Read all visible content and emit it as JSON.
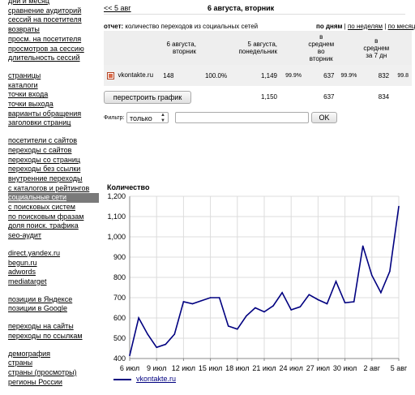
{
  "sidebar": {
    "groups": [
      [
        "дни и месяц",
        "сравнение аудиторий",
        "сессий на посетителя",
        "возвраты",
        "просм. на посетителя",
        "просмотров за сессию",
        "длительность сессий"
      ],
      [
        "страницы",
        "каталоги",
        "точки входа",
        "точки выхода",
        "варианты обращения",
        "заголовки страниц"
      ],
      [
        "посетители с сайтов",
        "переходы с сайтов",
        "переходы со страниц",
        "переходы без ссылки",
        "внутренние переходы",
        "с каталогов и рейтингов",
        "социальные сети",
        "с поисковых систем",
        "по поисковым фразам",
        "доля поиск. трафика",
        "seo-аудит"
      ],
      [
        "direct.yandex.ru",
        "begun.ru",
        "adwords",
        "mediatarget"
      ],
      [
        "позиции в Яндексе",
        "позиции в Google"
      ],
      [
        "переходы на сайты",
        "переходы по ссылкам"
      ],
      [
        "демография",
        "страны",
        "страны (просмотры)",
        "регионы России"
      ]
    ],
    "active": "социальные сети"
  },
  "header": {
    "back_link": "<< 5 авг",
    "title": "6 августа, вторник"
  },
  "report": {
    "label": "отчет:",
    "description": "количество переходов из социальных сетей",
    "periods_active": "по дням",
    "periods": [
      "по неделям",
      "по месяц"
    ]
  },
  "table": {
    "headers": [
      "6 августа, вторник",
      "5 августа, понедельник",
      "в среднем\nво вторник",
      "в среднем\nза 7 дн"
    ],
    "rows": [
      {
        "checked": true,
        "name": "vkontakte.ru",
        "v1": "148",
        "p1": "100.0%",
        "v2": "1,149",
        "p2": "99.9%",
        "v3": "637",
        "p3": "99.9%",
        "v4": "832",
        "p4": "99.8"
      },
      {
        "checked": false,
        "name": "всего",
        "v1": "148",
        "p1": "",
        "v2": "1,150",
        "p2": "",
        "v3": "637",
        "p3": "",
        "v4": "834",
        "p4": ""
      }
    ]
  },
  "rebuild_button": "перестроить график",
  "filter": {
    "label": "Фильтр:",
    "select_value": "только",
    "input_value": "",
    "ok_label": "OK"
  },
  "chart_data": {
    "type": "line",
    "title": "Количество",
    "x_ticks": [
      "6 июл",
      "9 июл",
      "12 июл",
      "15 июл",
      "18 июл",
      "21 июл",
      "24 июл",
      "27 июл",
      "30 июл",
      "2 авг",
      "5 авг"
    ],
    "x": [
      "6 июл",
      "7 июл",
      "8 июл",
      "9 июл",
      "10 июл",
      "11 июл",
      "12 июл",
      "13 июл",
      "14 июл",
      "15 июл",
      "16 июл",
      "17 июл",
      "18 июл",
      "19 июл",
      "20 июл",
      "21 июл",
      "22 июл",
      "23 июл",
      "24 июл",
      "25 июл",
      "26 июл",
      "27 июл",
      "28 июл",
      "29 июл",
      "30 июл",
      "31 июл",
      "1 авг",
      "2 авг",
      "3 авг",
      "4 авг",
      "5 авг"
    ],
    "series": [
      {
        "name": "vkontakte.ru",
        "color": "#000080",
        "values": [
          415,
          600,
          520,
          455,
          470,
          520,
          680,
          670,
          685,
          700,
          700,
          560,
          545,
          610,
          650,
          630,
          660,
          725,
          640,
          655,
          715,
          690,
          670,
          780,
          675,
          680,
          955,
          810,
          725,
          830,
          1150
        ]
      }
    ],
    "ylim": [
      400,
      1200
    ],
    "y_ticks": [
      "400",
      "500",
      "600",
      "700",
      "800",
      "900",
      "1,000",
      "1,100",
      "1,200"
    ],
    "grid": true,
    "legend": "bottom-left"
  }
}
